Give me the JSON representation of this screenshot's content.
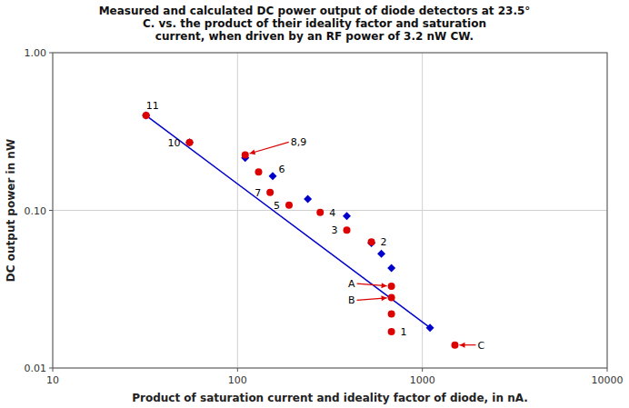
{
  "chart_data": {
    "type": "scatter",
    "title": "Measured and calculated DC power output of diode detectors at 23.5°\nC. vs. the product of their ideality factor and saturation\ncurrent, when driven by an RF power of 3.2 nW CW.",
    "xlabel": "Product of saturation current and ideality factor of diode, in nA.",
    "ylabel": "DC output power in nW",
    "log": true,
    "grid": true,
    "xlim": [
      10,
      10000
    ],
    "ylim": [
      0.01,
      1.0
    ],
    "xticks": [
      10,
      100,
      1000,
      10000
    ],
    "yticks": [
      0.01,
      {
        "value": 0.1,
        "label": "0.10"
      },
      {
        "value": 1.0,
        "label": "1.00"
      }
    ],
    "series": [
      {
        "type": "line",
        "color": "#0000cc",
        "line_style": "solid",
        "x": [
          32,
          1100
        ],
        "values": [
          0.4,
          0.018
        ]
      },
      {
        "type": "scatter",
        "marker": "diamond",
        "color": "#0000cc",
        "x": [
          32,
          55,
          110,
          155,
          240,
          390,
          530,
          600,
          680,
          1100
        ],
        "values": [
          0.4,
          0.27,
          0.215,
          0.165,
          0.118,
          0.092,
          0.062,
          0.053,
          0.043,
          0.018
        ]
      },
      {
        "type": "scatter",
        "marker": "circle",
        "color": "#dd0000",
        "x": [
          32,
          55,
          110,
          130,
          150,
          190,
          280,
          390,
          530,
          680,
          680,
          680,
          680,
          1500
        ],
        "values": [
          0.4,
          0.27,
          0.225,
          0.175,
          0.13,
          0.108,
          0.097,
          0.075,
          0.063,
          0.033,
          0.028,
          0.022,
          0.017,
          0.014
        ]
      }
    ],
    "annotations": [
      {
        "text": "11",
        "x": 32,
        "y": 0.4
      },
      {
        "text": "10",
        "x": 55,
        "y": 0.27
      },
      {
        "text": "8,9",
        "x": 110,
        "y": 0.225
      },
      {
        "text": "6",
        "x": 130,
        "y": 0.175
      },
      {
        "text": "7",
        "x": 150,
        "y": 0.13
      },
      {
        "text": "5",
        "x": 190,
        "y": 0.108
      },
      {
        "text": "4",
        "x": 280,
        "y": 0.097
      },
      {
        "text": "3",
        "x": 390,
        "y": 0.075
      },
      {
        "text": "2",
        "x": 530,
        "y": 0.063
      },
      {
        "text": "A",
        "x": 680,
        "y": 0.033
      },
      {
        "text": "B",
        "x": 680,
        "y": 0.028
      },
      {
        "text": "1",
        "x": 680,
        "y": 0.017
      },
      {
        "text": "C",
        "x": 1500,
        "y": 0.014
      }
    ]
  }
}
